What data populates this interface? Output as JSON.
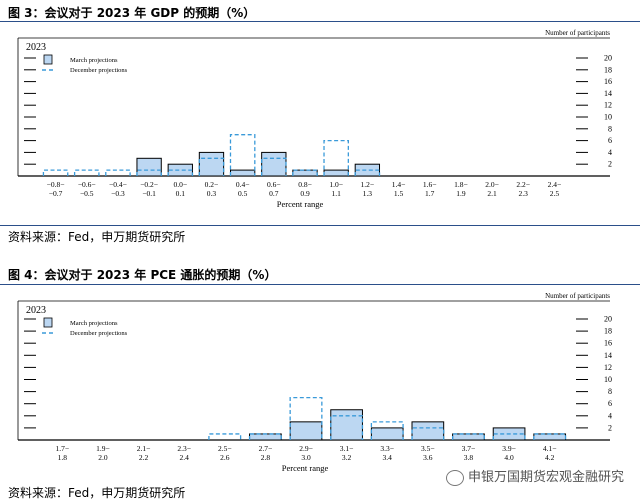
{
  "figures": [
    {
      "title": "图 3：会议对于 2023 年 GDP 的预期（%）",
      "source": "资料来源：Fed，申万期货研究所"
    },
    {
      "title": "图 4：会议对于 2023 年 PCE 通胀的预期（%）",
      "source": "资料来源：Fed，申万期货研究所"
    }
  ],
  "watermark": "申银万国期货宏观金融研究",
  "colors": {
    "march_fill": "#bcd7f2",
    "outline": "#000000",
    "december": "#3a9ad9",
    "rule": "#2b4f8a"
  },
  "chart_data": [
    {
      "type": "bar",
      "year_label": "2023",
      "xlabel": "Percent range",
      "ylabel": "Number of participants",
      "ylim": [
        0,
        20
      ],
      "yticks": [
        2,
        4,
        6,
        8,
        10,
        12,
        14,
        16,
        18,
        20
      ],
      "legend_position": "top-left",
      "categories": [
        [
          "−0.8−",
          "−0.7"
        ],
        [
          "−0.6−",
          "−0.5"
        ],
        [
          "−0.4−",
          "−0.3"
        ],
        [
          "−0.2−",
          "−0.1"
        ],
        [
          "0.0−",
          "0.1"
        ],
        [
          "0.2−",
          "0.3"
        ],
        [
          "0.4−",
          "0.5"
        ],
        [
          "0.6−",
          "0.7"
        ],
        [
          "0.8−",
          "0.9"
        ],
        [
          "1.0−",
          "1.1"
        ],
        [
          "1.2−",
          "1.3"
        ],
        [
          "1.4−",
          "1.5"
        ],
        [
          "1.6−",
          "1.7"
        ],
        [
          "1.8−",
          "1.9"
        ],
        [
          "2.0−",
          "2.1"
        ],
        [
          "2.2−",
          "2.3"
        ],
        [
          "2.4−",
          "2.5"
        ]
      ],
      "series": [
        {
          "name": "March projections",
          "style": "solid-filled",
          "values": [
            0,
            0,
            0,
            3,
            2,
            4,
            1,
            4,
            1,
            1,
            2,
            0,
            0,
            0,
            0,
            0,
            0
          ]
        },
        {
          "name": "December projections",
          "style": "dashed",
          "values": [
            1,
            1,
            1,
            1,
            1,
            3,
            7,
            3,
            1,
            6,
            1,
            0,
            0,
            0,
            0,
            0,
            0
          ]
        }
      ]
    },
    {
      "type": "bar",
      "year_label": "2023",
      "xlabel": "Percent range",
      "ylabel": "Number of participants",
      "ylim": [
        0,
        20
      ],
      "yticks": [
        2,
        4,
        6,
        8,
        10,
        12,
        14,
        16,
        18,
        20
      ],
      "legend_position": "top-left",
      "categories": [
        [
          "1.7−",
          "1.8"
        ],
        [
          "1.9−",
          "2.0"
        ],
        [
          "2.1−",
          "2.2"
        ],
        [
          "2.3−",
          "2.4"
        ],
        [
          "2.5−",
          "2.6"
        ],
        [
          "2.7−",
          "2.8"
        ],
        [
          "2.9−",
          "3.0"
        ],
        [
          "3.1−",
          "3.2"
        ],
        [
          "3.3−",
          "3.4"
        ],
        [
          "3.5−",
          "3.6"
        ],
        [
          "3.7−",
          "3.8"
        ],
        [
          "3.9−",
          "4.0"
        ],
        [
          "4.1−",
          "4.2"
        ]
      ],
      "series": [
        {
          "name": "March projections",
          "style": "solid-filled",
          "values": [
            0,
            0,
            0,
            0,
            0,
            1,
            3,
            5,
            2,
            3,
            1,
            2,
            1
          ]
        },
        {
          "name": "December projections",
          "style": "dashed",
          "values": [
            0,
            0,
            0,
            0,
            1,
            1,
            7,
            4,
            3,
            2,
            1,
            1,
            1
          ]
        }
      ]
    }
  ]
}
